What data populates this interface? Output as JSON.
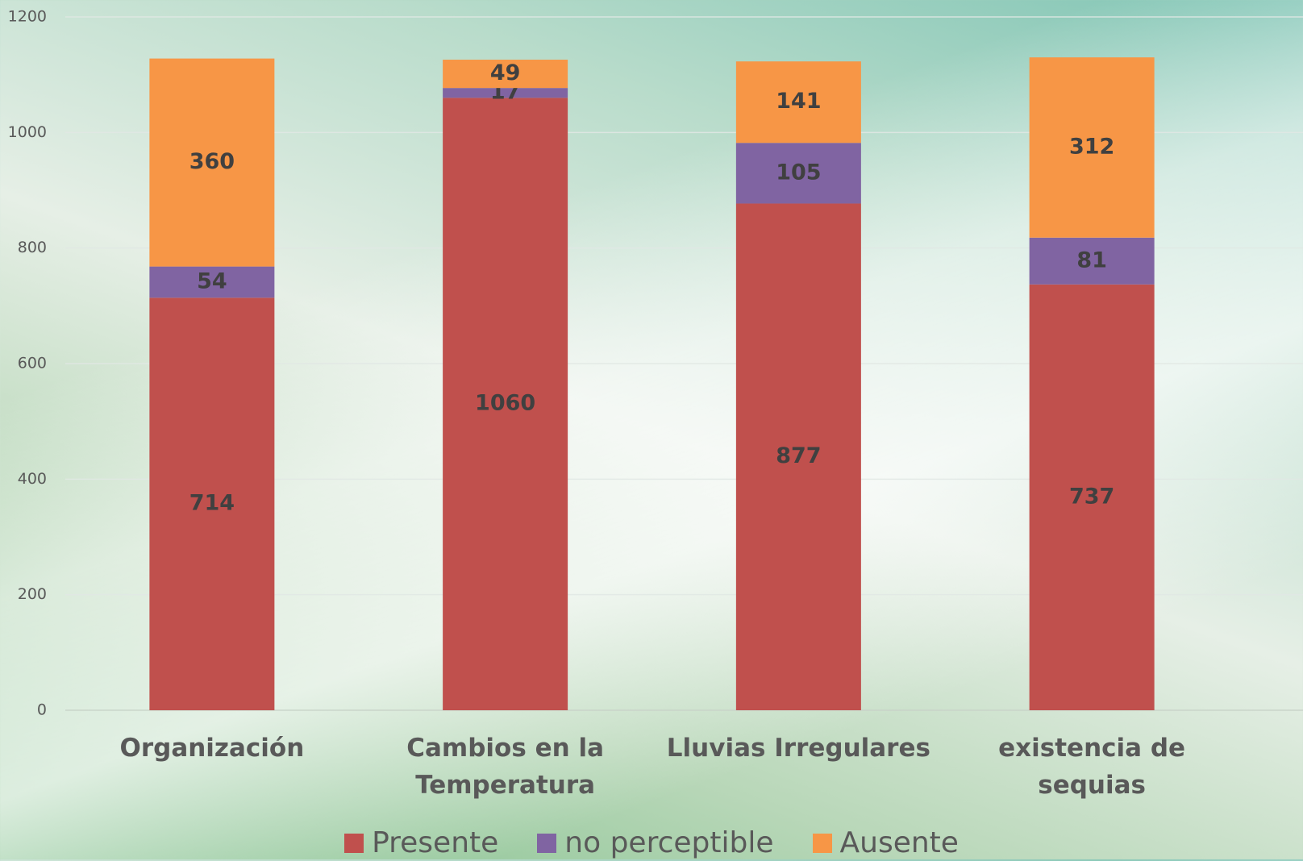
{
  "chart_data": {
    "type": "bar",
    "stacked": true,
    "categories": [
      "Organización",
      "Cambios en la Temperatura",
      "Lluvias Irregulares",
      "existencia de sequias"
    ],
    "series": [
      {
        "name": "Presente",
        "color": "#c0504d",
        "values": [
          714,
          1060,
          877,
          737
        ]
      },
      {
        "name": "no perceptible",
        "color": "#8064a2",
        "values": [
          54,
          17,
          105,
          81
        ]
      },
      {
        "name": "Ausente",
        "color": "#f79646",
        "values": [
          360,
          49,
          141,
          312
        ]
      }
    ],
    "ylim": [
      0,
      1200
    ],
    "yticks": [
      0,
      200,
      400,
      600,
      800,
      1000,
      1200
    ],
    "grid": true
  }
}
